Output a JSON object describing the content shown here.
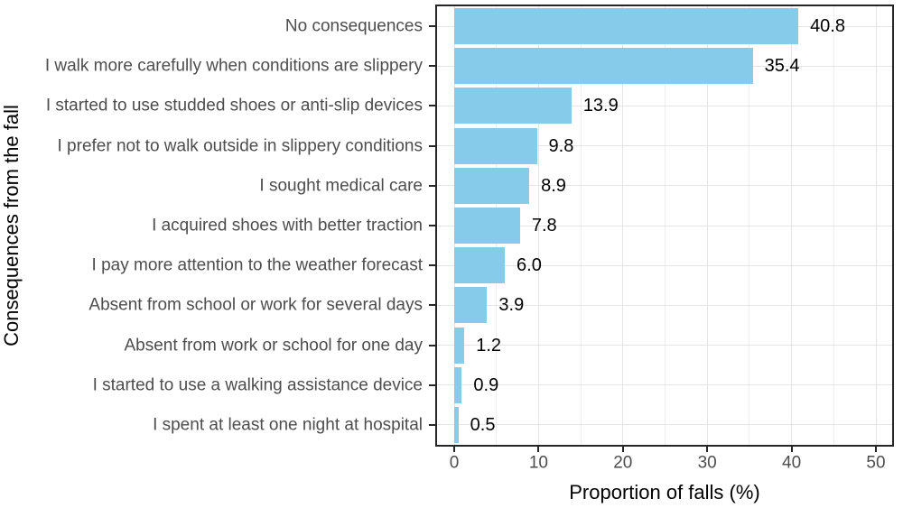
{
  "chart_data": {
    "type": "bar",
    "orientation": "horizontal",
    "xlabel": "Proportion of falls (%)",
    "ylabel": "Consequences from the fall",
    "categories": [
      "No consequences",
      "I walk more carefully when conditions are slippery",
      "I started to use studded shoes or anti-slip devices",
      "I prefer not to walk outside in slippery conditions",
      "I sought medical care",
      "I acquired shoes with better traction",
      "I pay more attention to the weather forecast",
      "Absent from school or work for several days",
      "Absent from work or school for one day",
      "I started to use a walking assistance device",
      "I spent at least one night at hospital"
    ],
    "values": [
      40.8,
      35.4,
      13.9,
      9.8,
      8.9,
      7.8,
      6.0,
      3.9,
      1.2,
      0.9,
      0.5
    ],
    "value_labels": [
      "40.8",
      "35.4",
      "13.9",
      "9.8",
      "8.9",
      "7.8",
      "6.0",
      "3.9",
      "1.2",
      "0.9",
      "0.5"
    ],
    "x_major_ticks": [
      0,
      10,
      20,
      30,
      40,
      50
    ],
    "x_minor_ticks": [
      5,
      15,
      25,
      35,
      45
    ],
    "xlim": [
      0,
      52
    ],
    "grid": true,
    "legend": false,
    "colors": {
      "bar_fill": "#87CBEA",
      "grid_major": "#E4E4E4",
      "grid_minor": "#EEEEEE",
      "panel_border": "#262626",
      "tick_mark": "#262626",
      "axis_text": "#4D4D4D",
      "axis_title": "#000000",
      "value_label": "#000000",
      "background": "#FFFFFF"
    }
  }
}
